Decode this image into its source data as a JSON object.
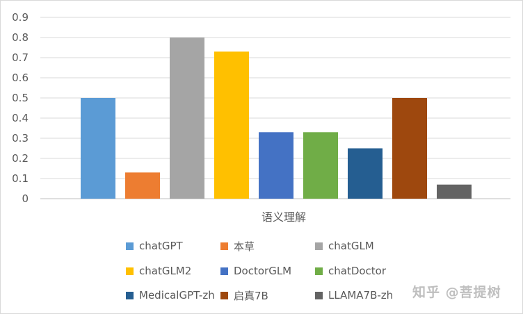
{
  "chart_data": {
    "type": "bar",
    "categories": [
      "语义理解"
    ],
    "series": [
      {
        "name": "chatGPT",
        "values": [
          0.5
        ],
        "color": "#5b9bd5"
      },
      {
        "name": "本草",
        "values": [
          0.13
        ],
        "color": "#ed7d31"
      },
      {
        "name": "chatGLM",
        "values": [
          0.8
        ],
        "color": "#a5a5a5"
      },
      {
        "name": "chatGLM2",
        "values": [
          0.73
        ],
        "color": "#ffc000"
      },
      {
        "name": "DoctorGLM",
        "values": [
          0.33
        ],
        "color": "#4472c4"
      },
      {
        "name": "chatDoctor",
        "values": [
          0.33
        ],
        "color": "#70ad47"
      },
      {
        "name": "MedicalGPT-zh",
        "values": [
          0.25
        ],
        "color": "#255e91"
      },
      {
        "name": "启真7B",
        "values": [
          0.5
        ],
        "color": "#9e480e"
      },
      {
        "name": "LLAMA7B-zh",
        "values": [
          0.07
        ],
        "color": "#636363"
      }
    ],
    "yticks": [
      "0",
      "0.1",
      "0.2",
      "0.3",
      "0.4",
      "0.5",
      "0.6",
      "0.7",
      "0.8",
      "0.9"
    ],
    "ylim": [
      0,
      0.9
    ],
    "grid": true,
    "legend_position": "bottom"
  },
  "watermark": "知乎 @菩提树"
}
